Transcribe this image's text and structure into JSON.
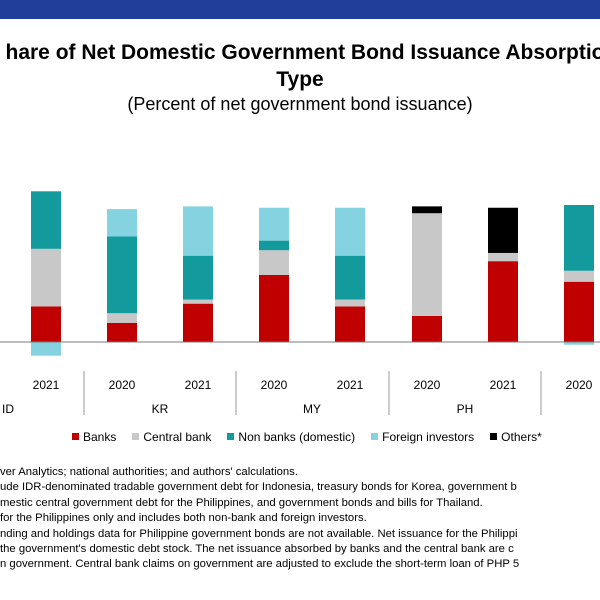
{
  "title_line1": "hare of Net Domestic Government Bond Issuance Absorptio",
  "title_line2": "Type",
  "subtitle": "(Percent of net government bond issuance)",
  "colors": {
    "Banks": "#c00000",
    "Central bank": "#c8c8c8",
    "Non banks (domestic)": "#139a9c",
    "Foreign investors": "#85d3e0",
    "Others*": "#000000"
  },
  "chart_data": {
    "type": "bar",
    "stacked": true,
    "grid": false,
    "legend_position": "bottom",
    "categories": [
      "2021",
      "2020",
      "2021",
      "2020",
      "2021",
      "2020",
      "2021",
      "2020"
    ],
    "groups": [
      {
        "label": "ID",
        "span": [
          0,
          0
        ]
      },
      {
        "label": "KR",
        "span": [
          1,
          2
        ]
      },
      {
        "label": "MY",
        "span": [
          3,
          4
        ]
      },
      {
        "label": "PH",
        "span": [
          5,
          6
        ]
      }
    ],
    "series": [
      {
        "name": "Banks",
        "values": [
          26,
          14,
          28,
          49,
          26,
          19,
          59,
          44
        ]
      },
      {
        "name": "Central bank",
        "values": [
          42,
          7,
          3,
          18,
          5,
          75,
          6,
          8
        ]
      },
      {
        "name": "Non banks (domestic)",
        "values": [
          42,
          56,
          32,
          7,
          32,
          0,
          0,
          48
        ]
      },
      {
        "name": "Foreign investors",
        "values": [
          -10,
          20,
          36,
          24,
          35,
          0,
          0,
          -2
        ]
      },
      {
        "name": "Others*",
        "values": [
          0,
          0,
          0,
          0,
          0,
          5,
          33,
          0
        ]
      }
    ]
  },
  "notes": [
    "ver Analytics; national authorities; and authors' calculations.",
    "ude IDR-denominated tradable government debt for Indonesia, treasury bonds for Korea, government b",
    "mestic central government debt for the Philippines, and government bonds and bills for Thailand.",
    " for the Philippines only and includes both non-bank and foreign investors.",
    "nding and holdings data for Philippine government bonds are not available. Net issuance for the Philippi",
    " the government's domestic debt stock. The net issuance absorbed by banks and the central bank are c",
    "n government. Central bank claims on government are adjusted to exclude the short-term loan of PHP 5"
  ]
}
